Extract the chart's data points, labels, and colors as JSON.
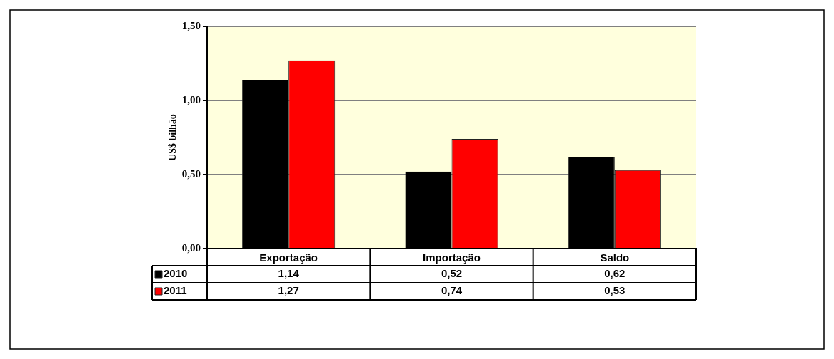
{
  "chart_data": {
    "type": "bar",
    "ylabel": "US$ bilhão",
    "categories": [
      "Exportação",
      "Importação",
      "Saldo"
    ],
    "series": [
      {
        "name": "2010",
        "color": "#000000",
        "values": [
          1.14,
          0.52,
          0.62
        ],
        "value_labels": [
          "1,14",
          "0,52",
          "0,62"
        ]
      },
      {
        "name": "2011",
        "color": "#ff0000",
        "values": [
          1.27,
          0.74,
          0.53
        ],
        "value_labels": [
          "1,27",
          "0,74",
          "0,53"
        ]
      }
    ],
    "ylim": [
      0,
      1.5
    ],
    "yticks": [
      {
        "value": 0,
        "label": "0,00"
      },
      {
        "value": 0.5,
        "label": "0,50"
      },
      {
        "value": 1,
        "label": "1,00"
      },
      {
        "value": 1.5,
        "label": "1,50"
      }
    ],
    "grid": "y",
    "legend": "bottom left"
  }
}
